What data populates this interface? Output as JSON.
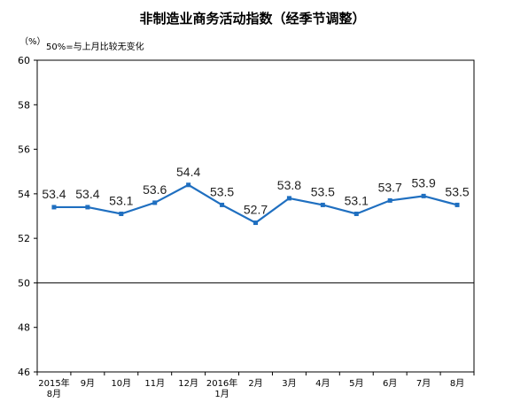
{
  "chart_data": {
    "type": "line",
    "title": "非制造业商务活动指数（经季节调整）",
    "unit": "（%）",
    "note": "50%=与上月比较无变化",
    "categories": [
      [
        "2015年",
        "8月"
      ],
      [
        "9月"
      ],
      [
        "10月"
      ],
      [
        "11月"
      ],
      [
        "12月"
      ],
      [
        "2016年",
        "1月"
      ],
      [
        "2月"
      ],
      [
        "3月"
      ],
      [
        "4月"
      ],
      [
        "5月"
      ],
      [
        "6月"
      ],
      [
        "7月"
      ],
      [
        "8月"
      ]
    ],
    "series": [
      {
        "values": [
          53.4,
          53.4,
          53.1,
          53.6,
          54.4,
          53.5,
          52.7,
          53.8,
          53.5,
          53.1,
          53.7,
          53.9,
          53.5
        ],
        "labels": [
          "53.4",
          "53.4",
          "53.1",
          "53.6",
          "54.4",
          "53.5",
          "52.7",
          "53.8",
          "53.5",
          "53.1",
          "53.7",
          "53.9",
          "53.5"
        ]
      }
    ],
    "ylim": [
      46,
      60
    ],
    "yticks": [
      46,
      48,
      50,
      52,
      54,
      56,
      58,
      60
    ],
    "reference_line": 50,
    "grid": false,
    "colors": {
      "line": "#1f6fc0",
      "marker": "#1f6fc0",
      "frame": "#000000"
    }
  }
}
